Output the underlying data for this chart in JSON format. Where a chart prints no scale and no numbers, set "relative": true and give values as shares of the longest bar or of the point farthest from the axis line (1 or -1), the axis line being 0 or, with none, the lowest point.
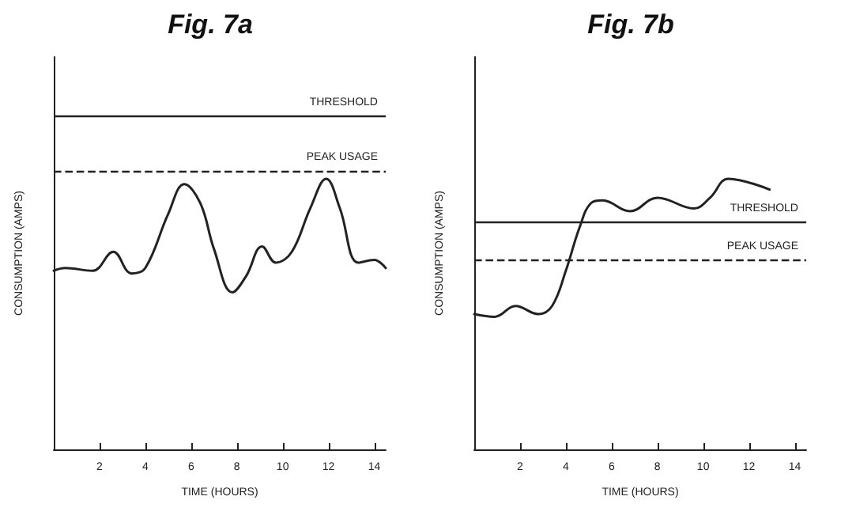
{
  "chart_data": [
    {
      "type": "line",
      "title": "Fig. 7a",
      "xlabel": "TIME (HOURS)",
      "ylabel": "CONSUMPTION (AMPS)",
      "relative": true,
      "xlim": [
        0,
        14.5
      ],
      "xticks": [
        2,
        4,
        6,
        8,
        10,
        12,
        14
      ],
      "grid": false,
      "marker": "none",
      "line_style": "solid",
      "series": [
        {
          "color": "#222222",
          "x": [
            0,
            0.5,
            1.7,
            2.6,
            3.4,
            4,
            5,
            5.7,
            6.4,
            7,
            7.8,
            8.4,
            9.1,
            9.7,
            10.4,
            11.2,
            11.9,
            12.5,
            13.3,
            14,
            14.5
          ],
          "values": [
            0.66,
            0.67,
            0.66,
            0.73,
            0.65,
            0.67,
            0.87,
            0.98,
            0.91,
            0.74,
            0.58,
            0.64,
            0.75,
            0.69,
            0.73,
            0.89,
            1,
            0.89,
            0.69,
            0.7,
            0.67
          ]
        }
      ],
      "ref_lines": [
        {
          "axis": "y",
          "value": 1.23,
          "label": "THRESHOLD",
          "color": "#222222",
          "line_style": "solid"
        },
        {
          "axis": "y",
          "value": 1.03,
          "label": "PEAK USAGE",
          "color": "#222222",
          "line_style": "dashed"
        }
      ]
    },
    {
      "type": "line",
      "title": "Fig. 7b",
      "xlabel": "TIME (HOURS)",
      "ylabel": "CONSUMPTION (AMPS)",
      "relative": true,
      "xlim": [
        0,
        14.5
      ],
      "xticks": [
        2,
        4,
        6,
        8,
        10,
        12,
        14
      ],
      "grid": false,
      "marker": "none",
      "line_style": "solid",
      "series": [
        {
          "color": "#222222",
          "x": [
            0,
            0.9,
            1.8,
            2.8,
            3.4,
            4,
            4.6,
            5.1,
            5.6,
            6.8,
            8,
            9.6,
            10.3,
            11.1,
            12.9
          ],
          "values": [
            0.5,
            0.49,
            0.53,
            0.5,
            0.53,
            0.66,
            0.82,
            0.91,
            0.92,
            0.88,
            0.93,
            0.89,
            0.93,
            1,
            0.96
          ]
        }
      ],
      "ref_lines": [
        {
          "axis": "y",
          "value": 0.84,
          "label": "THRESHOLD",
          "color": "#222222",
          "line_style": "solid"
        },
        {
          "axis": "y",
          "value": 0.7,
          "label": "PEAK USAGE",
          "color": "#222222",
          "line_style": "dashed"
        }
      ]
    }
  ]
}
